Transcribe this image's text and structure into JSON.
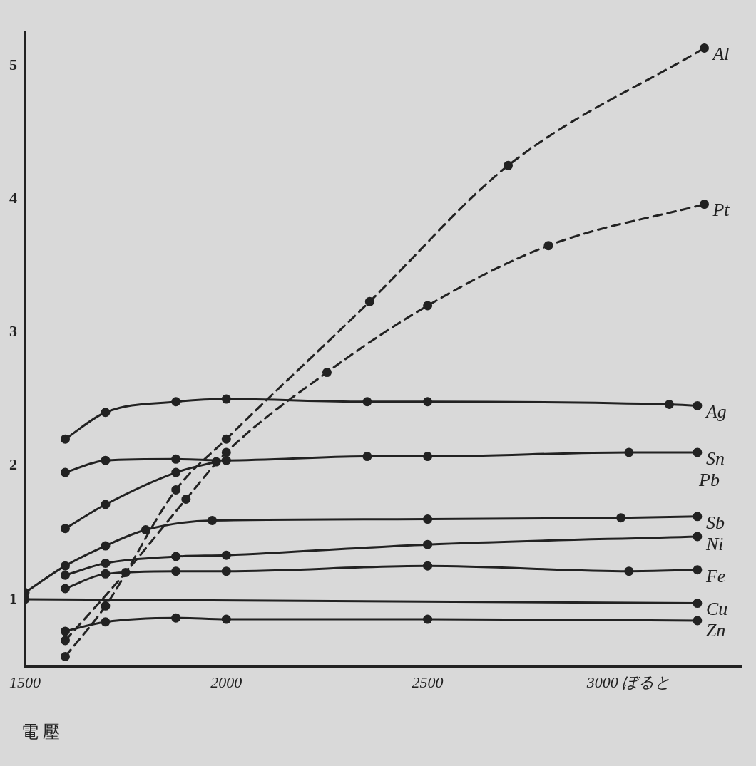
{
  "chart_data": {
    "type": "line",
    "annotations": [
      "電 壓"
    ],
    "xlim": [
      1500,
      3280
    ],
    "ylim": [
      0.5,
      5.25
    ],
    "xticks": [
      1500,
      2000,
      2500,
      {
        "value": 3000,
        "label": "3000 ぼると"
      }
    ],
    "yticks": [
      1,
      2,
      3,
      4,
      5
    ],
    "grid": false,
    "legend": false,
    "marker": "circle",
    "series": [
      {
        "name": "Al",
        "color": "#222222",
        "line_style": "dashed",
        "x": [
          1600,
          1700,
          1875,
          2000,
          2356,
          2700,
          3187
        ],
        "values": [
          0.57,
          0.95,
          1.82,
          2.2,
          3.23,
          4.25,
          5.13
        ]
      },
      {
        "name": "Pt",
        "color": "#222222",
        "line_style": "dashed",
        "x": [
          1600,
          1750,
          1900,
          2000,
          2250,
          2500,
          2800,
          3187
        ],
        "values": [
          0.69,
          1.2,
          1.75,
          2.1,
          2.7,
          3.2,
          3.65,
          3.96
        ]
      },
      {
        "name": "Ag",
        "color": "#222222",
        "line_style": "solid",
        "x": [
          1600,
          1700,
          1875,
          2000,
          2350,
          2500,
          3100,
          3170
        ],
        "values": [
          2.2,
          2.4,
          2.48,
          2.5,
          2.48,
          2.48,
          2.46,
          2.45
        ]
      },
      {
        "name": "Sn",
        "color": "#222222",
        "line_style": "solid",
        "x": [
          1600,
          1700,
          1875,
          2000,
          2350,
          2500,
          3000,
          3170
        ],
        "values": [
          1.95,
          2.04,
          2.05,
          2.04,
          2.07,
          2.07,
          2.1,
          2.1
        ]
      },
      {
        "name": "Pb",
        "color": "#222222",
        "line_style": "solid",
        "x": [
          1600,
          1700,
          1875,
          1975
        ],
        "values": [
          1.53,
          1.71,
          1.95,
          2.03
        ]
      },
      {
        "name": "Sb",
        "color": "#222222",
        "line_style": "solid",
        "x": [
          1500,
          1600,
          1700,
          1800,
          1965,
          2500,
          2980,
          3170
        ],
        "values": [
          1.05,
          1.25,
          1.4,
          1.52,
          1.59,
          1.6,
          1.61,
          1.62
        ]
      },
      {
        "name": "Ni",
        "color": "#222222",
        "line_style": "solid",
        "x": [
          1600,
          1700,
          1875,
          2000,
          2500,
          3170
        ],
        "values": [
          1.18,
          1.27,
          1.32,
          1.33,
          1.41,
          1.47
        ]
      },
      {
        "name": "Fe",
        "color": "#222222",
        "line_style": "solid",
        "x": [
          1600,
          1700,
          1875,
          2000,
          2500,
          3000,
          3170
        ],
        "values": [
          1.08,
          1.19,
          1.21,
          1.21,
          1.25,
          1.21,
          1.22
        ]
      },
      {
        "name": "Cu",
        "color": "#222222",
        "line_style": "solid",
        "x": [
          1500,
          3170
        ],
        "values": [
          1.0,
          0.97
        ]
      },
      {
        "name": "Zn",
        "color": "#222222",
        "line_style": "solid",
        "x": [
          1600,
          1700,
          1875,
          2000,
          2500,
          3170
        ],
        "values": [
          0.76,
          0.83,
          0.86,
          0.85,
          0.85,
          0.84
        ]
      }
    ]
  }
}
